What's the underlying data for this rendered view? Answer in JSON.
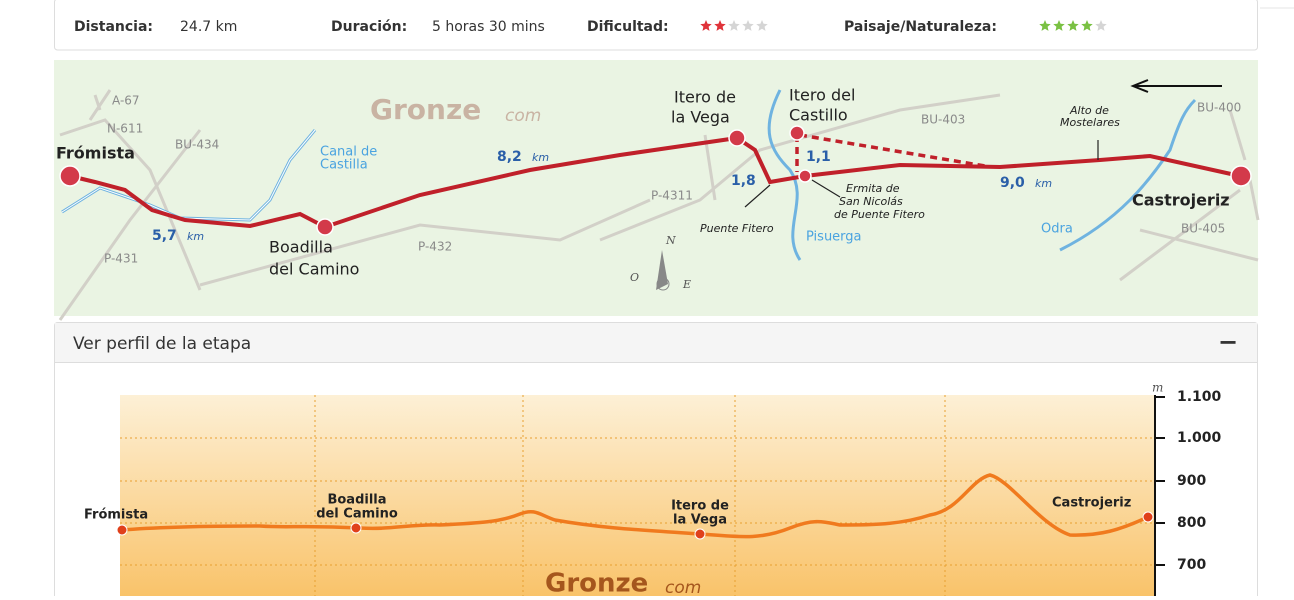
{
  "summary": {
    "distance": {
      "label": "Distancia:",
      "value": "24.7 km"
    },
    "duration": {
      "label": "Duración:",
      "value": "5 horas 30 mins"
    },
    "difficulty": {
      "label": "Dificultad:",
      "rating": 2,
      "max": 5
    },
    "landscape": {
      "label": "Paisaje/Naturaleza:",
      "rating": 4,
      "max": 5
    }
  },
  "map": {
    "logo": [
      "Gronze",
      "com"
    ],
    "places": [
      [
        "Frómista"
      ],
      [
        "Boadilla",
        "del Camino"
      ],
      [
        "Itero de",
        "la Vega"
      ],
      [
        "Itero del",
        "Castillo"
      ],
      [
        "Castrojeriz"
      ]
    ],
    "roads": [
      "A-67",
      "N-611",
      "BU-434",
      "P-431",
      "P-432",
      "P-4311",
      "BU-403",
      "BU-400",
      "BU-405"
    ],
    "water": [
      [
        "Canal de",
        "Castilla"
      ],
      [
        "Pisuerga"
      ],
      [
        "Odra"
      ]
    ],
    "distances": [
      {
        "value": "5,7",
        "unit": "km"
      },
      {
        "value": "8,2",
        "unit": "km"
      },
      {
        "value": "1,8"
      },
      {
        "value": "1,1"
      },
      {
        "value": "9,0",
        "unit": "km"
      }
    ],
    "notes": [
      [
        "Puente Fitero"
      ],
      [
        "Ermita de",
        "San Nicolás",
        "de Puente Fitero"
      ],
      [
        "Alto de",
        "Mostelares"
      ]
    ],
    "compass": [
      "N",
      "O",
      "E"
    ]
  },
  "profile": {
    "title": "Ver perfil de la etapa",
    "toggle": "−",
    "unit": "m",
    "yticks": [
      "1.100",
      "1.000",
      "900",
      "800",
      "700"
    ],
    "places": [
      [
        "Frómista"
      ],
      [
        "Boadilla",
        "del Camino"
      ],
      [
        "Itero de",
        "la Vega"
      ],
      [
        "Castrojeriz"
      ]
    ],
    "logo": [
      "Gronze",
      "com"
    ]
  }
}
